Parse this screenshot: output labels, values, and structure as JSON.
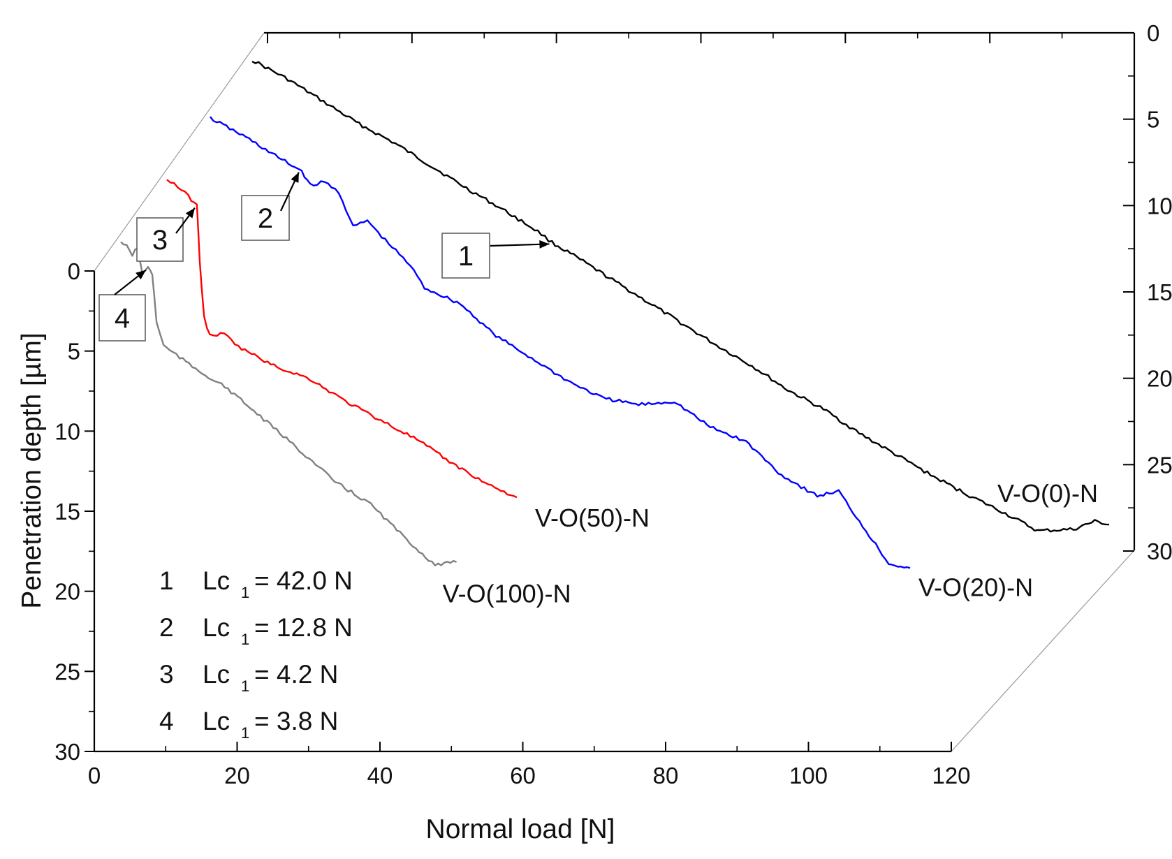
{
  "chart_data": {
    "type": "line",
    "projection": "3d-waterfall",
    "xlabel": "Normal load [N]",
    "ylabel": "Penetration depth [µm]",
    "xlim": [
      0,
      120
    ],
    "ylim": [
      0,
      30
    ],
    "x_ticks": [
      "0",
      "20",
      "40",
      "60",
      "80",
      "100",
      "120"
    ],
    "y_ticks": [
      "0",
      "5",
      "10",
      "15",
      "20",
      "25",
      "30"
    ],
    "back_y_ticks": [
      "0",
      "5",
      "10",
      "15",
      "20",
      "25",
      "30"
    ],
    "series": [
      {
        "name": "V-O(0)-N",
        "color": "#000000",
        "depth_index": 0,
        "x": [
          0,
          5,
          10,
          15,
          20,
          25,
          30,
          35,
          40,
          42,
          45,
          50,
          55,
          60,
          65,
          70,
          75,
          80,
          85,
          90,
          95,
          100,
          105,
          110,
          115,
          118,
          120
        ],
        "y": [
          0,
          1.2,
          2.6,
          4.0,
          5.2,
          6.6,
          8.0,
          9.3,
          10.7,
          11.4,
          12.2,
          13.6,
          15.0,
          16.4,
          17.8,
          19.1,
          20.6,
          21.8,
          23.3,
          24.6,
          25.9,
          27.1,
          28.2,
          29.4,
          29.3,
          28.8,
          29.0
        ]
      },
      {
        "name": "V-O(20)-N",
        "color": "#0000ff",
        "depth_index": 1,
        "x": [
          0,
          5,
          10,
          12.8,
          14,
          16,
          18,
          20,
          22,
          24,
          26,
          28,
          30,
          35,
          40,
          45,
          50,
          55,
          60,
          65,
          70,
          75,
          80,
          85,
          88,
          90,
          95,
          98
        ],
        "y": [
          0,
          1.2,
          2.6,
          3.3,
          4.2,
          4.0,
          4.6,
          6.8,
          6.4,
          7.4,
          8.3,
          9.2,
          10.6,
          11.6,
          13.6,
          15.0,
          16.4,
          17.5,
          17.9,
          17.7,
          19.3,
          20.2,
          22.3,
          23.6,
          23.3,
          24.6,
          27.8,
          28.1
        ]
      },
      {
        "name": "V-O(50)-N",
        "color": "#ff0000",
        "depth_index": 2,
        "x": [
          0,
          1,
          2,
          3,
          4.2,
          4.6,
          5.2,
          6,
          8,
          10,
          15,
          20,
          25,
          30,
          35,
          40,
          45,
          49
        ],
        "y": [
          0,
          0.2,
          0.6,
          1.0,
          1.6,
          5.0,
          8.6,
          9.7,
          9.6,
          10.4,
          11.6,
          12.4,
          13.8,
          15.0,
          16.2,
          17.7,
          19.0,
          19.8
        ]
      },
      {
        "name": "V-O(100)-N",
        "color": "#808080",
        "depth_index": 3,
        "x": [
          0,
          0.8,
          1.6,
          2.4,
          3.0,
          3.8,
          4.4,
          5,
          6,
          10,
          15,
          20,
          25,
          30,
          35,
          40,
          44,
          47
        ],
        "y": [
          0,
          0.3,
          0.8,
          0.4,
          2.0,
          1.6,
          2.0,
          5.0,
          6.5,
          7.8,
          9.2,
          11.1,
          13.0,
          15.0,
          16.4,
          18.6,
          20.2,
          20.0
        ]
      }
    ],
    "critical_loads": [
      {
        "id": "1",
        "series": "V-O(0)-N",
        "label": "Lc",
        "subscript": "1",
        "value_text": "= 42.0 N",
        "value": 42.0
      },
      {
        "id": "2",
        "series": "V-O(20)-N",
        "label": "Lc",
        "subscript": "1",
        "value_text": "= 12.8 N",
        "value": 12.8
      },
      {
        "id": "3",
        "series": "V-O(50)-N",
        "label": "Lc",
        "subscript": "1",
        "value_text": "= 4.2 N",
        "value": 4.2
      },
      {
        "id": "4",
        "series": "V-O(100)-N",
        "label": "Lc",
        "subscript": "1",
        "value_text": "= 3.8 N",
        "value": 3.8
      }
    ],
    "legend_placement": "bottom-left"
  }
}
